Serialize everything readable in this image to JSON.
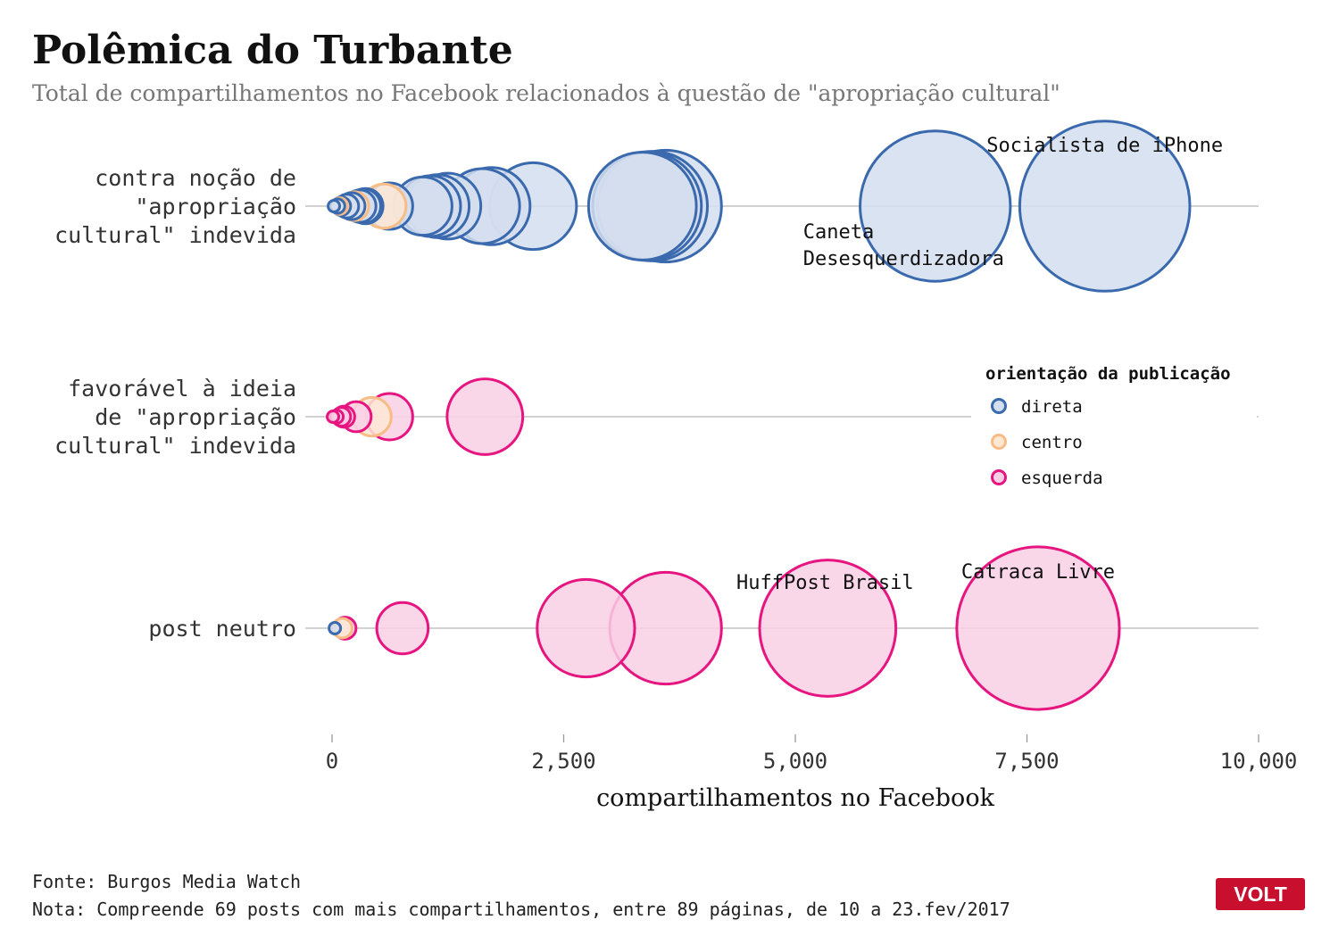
{
  "header": {
    "title": "Polêmica do Turbante",
    "subtitle": "Total de compartilhamentos no Facebook relacionados à questão de \"apropriação cultural\""
  },
  "footer": {
    "source": "Fonte: Burgos Media Watch",
    "note": "Nota: Compreende 69 posts com mais compartilhamentos, entre 89 páginas, de 10 a 23.fev/2017"
  },
  "logo": {
    "text": "VOLT"
  },
  "legend": {
    "title": "orientação da publicação",
    "items": [
      {
        "key": "direita",
        "label": "direta"
      },
      {
        "key": "centro",
        "label": "centro"
      },
      {
        "key": "esquerda",
        "label": "esquerda"
      }
    ]
  },
  "colors": {
    "direita": {
      "stroke": "#3a6aad",
      "fill": "#d3deef"
    },
    "centro": {
      "stroke": "#f8bd86",
      "fill": "#fde8d4"
    },
    "esquerda": {
      "stroke": "#e6157f",
      "fill": "#f9cfe5"
    },
    "baseline": "#b8b8b8",
    "logo": "#c8102e"
  },
  "chart_data": {
    "type": "scatter",
    "title": "Polêmica do Turbante",
    "xlabel": "compartilhamentos no Facebook",
    "xlim": [
      0,
      10000
    ],
    "xticks": [
      0,
      2500,
      5000,
      7500,
      10000
    ],
    "xtick_labels": [
      "0",
      "2,500",
      "5,000",
      "7,500",
      "10,000"
    ],
    "size_encoding": "compartilhamentos",
    "categories": [
      {
        "key": "contra",
        "lines": [
          "contra noção de",
          "\"apropriação",
          "cultural\" indevida"
        ]
      },
      {
        "key": "favoravel",
        "lines": [
          "favorável à ideia",
          "de \"apropriação",
          "cultural\" indevida"
        ]
      },
      {
        "key": "neutro",
        "lines": [
          "post neutro"
        ]
      }
    ],
    "series": [
      {
        "key": "direita",
        "points": [
          {
            "category": "contra",
            "x": 20
          },
          {
            "category": "contra",
            "x": 60
          },
          {
            "category": "contra",
            "x": 100
          },
          {
            "category": "contra",
            "x": 160
          },
          {
            "category": "contra",
            "x": 210
          },
          {
            "category": "contra",
            "x": 300
          },
          {
            "category": "contra",
            "x": 340
          },
          {
            "category": "contra",
            "x": 360
          },
          {
            "category": "contra",
            "x": 620
          },
          {
            "category": "contra",
            "x": 980
          },
          {
            "category": "contra",
            "x": 1060
          },
          {
            "category": "contra",
            "x": 1140
          },
          {
            "category": "contra",
            "x": 1250
          },
          {
            "category": "contra",
            "x": 1620
          },
          {
            "category": "contra",
            "x": 1720
          },
          {
            "category": "contra",
            "x": 2170
          },
          {
            "category": "contra",
            "x": 3350
          },
          {
            "category": "contra",
            "x": 3400
          },
          {
            "category": "contra",
            "x": 3460
          },
          {
            "category": "contra",
            "x": 3600
          },
          {
            "category": "contra",
            "x": 6510,
            "label": "Caneta Desesquerdizadora",
            "label_lines": [
              "Caneta",
              "Desesquerdizadora"
            ]
          },
          {
            "category": "contra",
            "x": 8340,
            "label": "Socialista de iPhone"
          },
          {
            "category": "neutro",
            "x": 30
          }
        ]
      },
      {
        "key": "centro",
        "points": [
          {
            "category": "contra",
            "x": 80
          },
          {
            "category": "contra",
            "x": 240
          },
          {
            "category": "contra",
            "x": 560
          },
          {
            "category": "favoravel",
            "x": 430
          },
          {
            "category": "neutro",
            "x": 110
          }
        ]
      },
      {
        "key": "esquerda",
        "points": [
          {
            "category": "favoravel",
            "x": 10
          },
          {
            "category": "favoravel",
            "x": 50
          },
          {
            "category": "favoravel",
            "x": 100
          },
          {
            "category": "favoravel",
            "x": 130
          },
          {
            "category": "favoravel",
            "x": 260
          },
          {
            "category": "favoravel",
            "x": 620
          },
          {
            "category": "favoravel",
            "x": 1650
          },
          {
            "category": "neutro",
            "x": 140
          },
          {
            "category": "neutro",
            "x": 760
          },
          {
            "category": "neutro",
            "x": 2740
          },
          {
            "category": "neutro",
            "x": 3600
          },
          {
            "category": "neutro",
            "x": 5350,
            "label": "HuffPost Brasil"
          },
          {
            "category": "neutro",
            "x": 7620,
            "label": "Catraca Livre"
          }
        ]
      }
    ]
  }
}
